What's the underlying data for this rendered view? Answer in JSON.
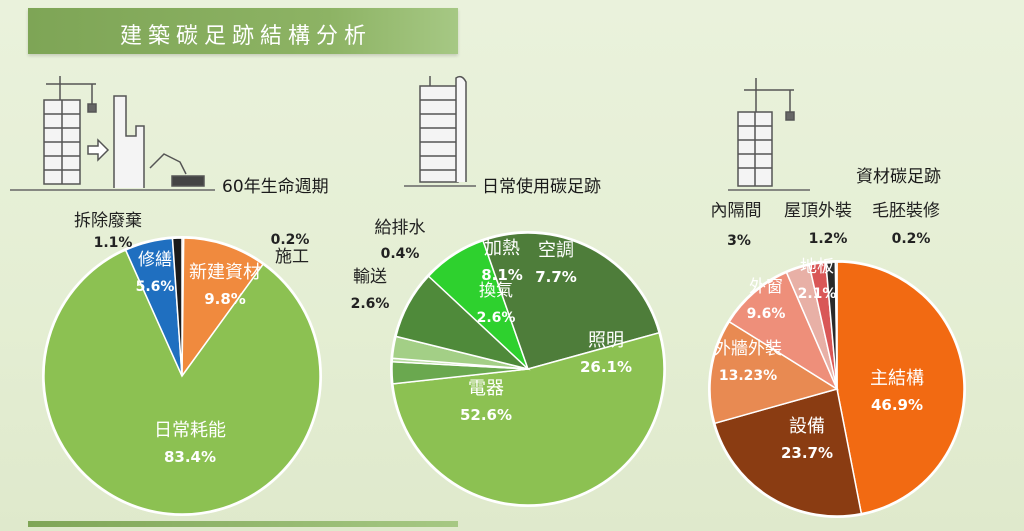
{
  "title": "建築碳足跡結構分析",
  "section_labels": {
    "lifecycle": "60年生命週期",
    "daily": "日常使用碳足跡",
    "material": "資材碳足跡"
  },
  "chart_data": [
    {
      "type": "pie",
      "title": "60年生命週期",
      "slices": [
        {
          "label": "日常耗能",
          "value": 83.4,
          "pct": "83.4%",
          "color": "#8cc152"
        },
        {
          "label": "修繕",
          "value": 5.6,
          "pct": "5.6%",
          "color": "#1f6fc0"
        },
        {
          "label": "拆除廢棄",
          "value": 1.1,
          "pct": "1.1%",
          "color": "#1a1a1a"
        },
        {
          "label": "新建資材",
          "value": 9.8,
          "pct": "9.8%",
          "color": "#f08a3e"
        },
        {
          "label": "施工",
          "value": 0.2,
          "pct": "0.2%",
          "color": "#c0504d"
        }
      ]
    },
    {
      "type": "pie",
      "title": "日常使用碳足跡",
      "slices": [
        {
          "label": "電器",
          "value": 52.6,
          "pct": "52.6%",
          "color": "#8cc152"
        },
        {
          "label": "輸送",
          "value": 2.6,
          "pct": "2.6%",
          "color": "#6aa84f"
        },
        {
          "label": "給排水",
          "value": 0.4,
          "pct": "0.4%",
          "color": "#b7dca0"
        },
        {
          "label": "換氣",
          "value": 2.6,
          "pct": "2.6%",
          "color": "#a3cf86"
        },
        {
          "label": "加熱",
          "value": 8.1,
          "pct": "8.1%",
          "color": "#4f8a3a"
        },
        {
          "label": "空調",
          "value": 7.7,
          "pct": "7.7%",
          "color": "#2ed12e"
        },
        {
          "label": "照明",
          "value": 26.1,
          "pct": "26.1%",
          "color": "#4e7d3a"
        }
      ]
    },
    {
      "type": "pie",
      "title": "資材碳足跡",
      "slices": [
        {
          "label": "主結構",
          "value": 46.9,
          "pct": "46.9%",
          "color": "#f26a12"
        },
        {
          "label": "設備",
          "value": 23.7,
          "pct": "23.7%",
          "color": "#8a3c12"
        },
        {
          "label": "外牆外裝",
          "value": 13.23,
          "pct": "13.23%",
          "color": "#e88a52"
        },
        {
          "label": "外窗",
          "value": 9.6,
          "pct": "9.6%",
          "color": "#ee8f7a"
        },
        {
          "label": "內隔間",
          "value": 3,
          "pct": "3%",
          "color": "#e8b0a6"
        },
        {
          "label": "地板",
          "value": 2.1,
          "pct": "2.1%",
          "color": "#d95757"
        },
        {
          "label": "屋頂外裝",
          "value": 1.2,
          "pct": "1.2%",
          "color": "#2a2a2a"
        },
        {
          "label": "毛胚裝修",
          "value": 0.2,
          "pct": "0.2%",
          "color": "#5a1a1a"
        }
      ]
    }
  ]
}
